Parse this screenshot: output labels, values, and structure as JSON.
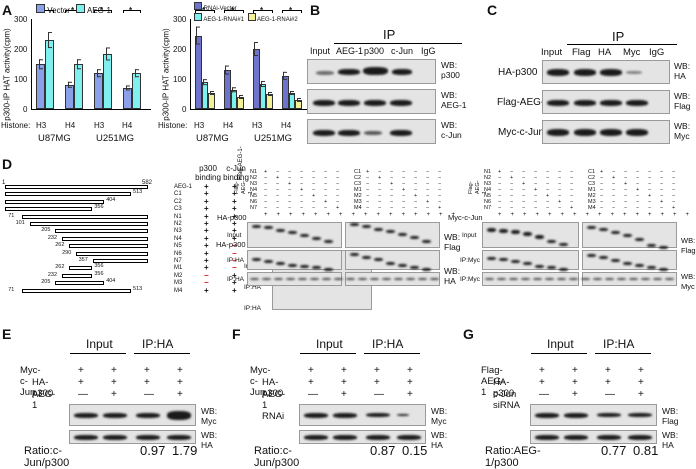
{
  "colors": {
    "vector": "#8aa1ea",
    "aeg1": "#7ff0ef",
    "rnai_vector": "#6e73cc",
    "rnai1": "#7cf2f0",
    "rnai2": "#f3f197",
    "neg": "#d01818"
  },
  "panels": {
    "A": "A",
    "B": "B",
    "C": "C",
    "D": "D",
    "E": "E",
    "F": "F",
    "G": "G"
  },
  "chart_left": {
    "ylabel": "p300-IP HAT activity(cpm)",
    "ticks": [
      "300",
      "200",
      "100",
      "0"
    ],
    "legend": [
      "Vector",
      "AEG-1"
    ],
    "histone_label": "Histone:",
    "groups": [
      "H3",
      "H4",
      "H3",
      "H4"
    ],
    "cells": [
      "U87MG",
      "U251MG"
    ],
    "sig": "*"
  },
  "chart_right": {
    "ylabel": "p300-IP HAT activity(cpm)",
    "ticks": [
      "300",
      "200",
      "100",
      "0"
    ],
    "legend": [
      "RNAi-Vector",
      "AEG-1-RNAi#1",
      "AEG-1-RNAi#2"
    ],
    "histone_label": "Histone:",
    "groups": [
      "H3",
      "H4",
      "H3",
      "H4"
    ],
    "cells": [
      "U87MG",
      "U251MG"
    ],
    "sig": "*"
  },
  "chart_data": [
    {
      "type": "bar",
      "ylim": [
        0,
        300
      ],
      "categories": [
        "U87MG H3",
        "U87MG H4",
        "U251MG H3",
        "U251MG H4"
      ],
      "series": [
        {
          "name": "Vector",
          "values": [
            150,
            80,
            120,
            70
          ]
        },
        {
          "name": "AEG-1",
          "values": [
            230,
            150,
            185,
            120
          ]
        }
      ]
    },
    {
      "type": "bar",
      "ylim": [
        0,
        300
      ],
      "categories": [
        "U87MG H3",
        "U87MG H4",
        "U251MG H3",
        "U251MG H4"
      ],
      "series": [
        {
          "name": "RNAi-Vector",
          "values": [
            245,
            130,
            200,
            110
          ]
        },
        {
          "name": "AEG-1-RNAi#1",
          "values": [
            90,
            65,
            85,
            55
          ]
        },
        {
          "name": "AEG-1-RNAi#2",
          "values": [
            55,
            40,
            50,
            30
          ]
        }
      ]
    }
  ],
  "panelB": {
    "ip": "IP",
    "lanes": [
      "Input",
      "AEG-1",
      "p300",
      "c-Jun",
      "IgG"
    ],
    "wb": [
      [
        "WB:",
        "p300"
      ],
      [
        "WB:",
        "AEG-1"
      ],
      [
        "WB:",
        "c-Jun"
      ]
    ]
  },
  "panelC": {
    "ip": "IP",
    "lanes": [
      "Input",
      "Flag",
      "HA",
      "Myc",
      "IgG"
    ],
    "rows": [
      "HA-p300",
      "Flag-AEG-1",
      "Myc-c-Jun"
    ],
    "wb": [
      [
        "WB:",
        "HA"
      ],
      [
        "WB:",
        "Flag"
      ],
      [
        "WB:",
        "Myc"
      ]
    ]
  },
  "panelD": {
    "scale_start": "1",
    "scale_end": "582",
    "constructs": [
      {
        "name": "AEG-1",
        "s": "",
        "e": "",
        "p": "+",
        "c": "+"
      },
      {
        "name": "C1",
        "s": "",
        "e": "513",
        "p": "+",
        "c": "+"
      },
      {
        "name": "C2",
        "s": "",
        "e": "404",
        "p": "+",
        "c": "+"
      },
      {
        "name": "C3",
        "s": "",
        "e": "356",
        "p": "+",
        "c": "+"
      },
      {
        "name": "N1",
        "s": "71",
        "e": "",
        "p": "+",
        "c": "+"
      },
      {
        "name": "N2",
        "s": "101",
        "e": "",
        "p": "+",
        "c": "+"
      },
      {
        "name": "N3",
        "s": "205",
        "e": "",
        "p": "+",
        "c": "+"
      },
      {
        "name": "N4",
        "s": "232",
        "e": "",
        "p": "+",
        "c": "+"
      },
      {
        "name": "N5",
        "s": "262",
        "e": "",
        "p": "+",
        "c": "−"
      },
      {
        "name": "N6",
        "s": "290",
        "e": "",
        "p": "+",
        "c": "−"
      },
      {
        "name": "N7",
        "s": "357",
        "e": "",
        "p": "+",
        "c": "−"
      },
      {
        "name": "M1",
        "s": "262",
        "e": "356",
        "p": "+",
        "c": "−"
      },
      {
        "name": "M2",
        "s": "232",
        "e": "356",
        "p": "−",
        "c": "+"
      },
      {
        "name": "M3",
        "s": "205",
        "e": "404",
        "p": "−",
        "c": "+"
      },
      {
        "name": "M4",
        "s": "71",
        "e": "513",
        "p": "+",
        "c": "+"
      }
    ],
    "col_p300": "p300 binding",
    "col_cjun": "c-Jun binding",
    "blot1": {
      "label": "Flag-AEG-1-",
      "rows": [
        "N1",
        "N2",
        "N3",
        "N4",
        "N5",
        "N6",
        "N7"
      ],
      "rows2": [
        "C1",
        "C2",
        "C3",
        "M1",
        "M2",
        "M3",
        "M4"
      ],
      "bottom": "HA-p300",
      "lanes": [
        "Input",
        "IP:HA",
        "IP:HA"
      ],
      "wb": [
        [
          "WB:",
          "Flag"
        ],
        [
          "WB:",
          "HA"
        ]
      ]
    },
    "blot2": {
      "label": "Flag-AEG-1-",
      "rows": [
        "N1",
        "N2",
        "N3",
        "N4",
        "N5",
        "N6",
        "N7"
      ],
      "rows2": [
        "C1",
        "C2",
        "C3",
        "M1",
        "M2",
        "M3",
        "M4"
      ],
      "bottom": "Myc-c-Jun",
      "lanes": [
        "Input",
        "IP:Myc",
        "IP:Myc"
      ],
      "wb": [
        [
          "WB:",
          "Flag"
        ],
        [
          "WB:",
          "Myc"
        ]
      ]
    }
  },
  "panelE": {
    "h1": "Input",
    "h2": "IP:HA",
    "rows": [
      [
        "Myc-c-Jun",
        "+",
        "+",
        "+",
        "+"
      ],
      [
        "HA-p300",
        "+",
        "+",
        "+",
        "+"
      ],
      [
        "AEG-1",
        "—",
        "+",
        "—",
        "+"
      ]
    ],
    "wb": [
      [
        "WB:",
        "Myc"
      ],
      [
        "WB:",
        "HA"
      ]
    ],
    "ratio": "Ratio:c-Jun/p300",
    "r1": "0.97",
    "r2": "1.79"
  },
  "panelF": {
    "h1": "Input",
    "h2": "IP:HA",
    "rows": [
      [
        "Myc-c-Jun",
        "+",
        "+",
        "+",
        "+"
      ],
      [
        "HA-p300",
        "+",
        "+",
        "+",
        "+"
      ],
      [
        "AEG-1 RNAi",
        "—",
        "+",
        "—",
        "+"
      ]
    ],
    "wb": [
      [
        "WB:",
        "Myc"
      ],
      [
        "WB:",
        "HA"
      ]
    ],
    "ratio": "Ratio:c-Jun/p300",
    "r1": "0.87",
    "r2": "0.15"
  },
  "panelG": {
    "h1": "Input",
    "h2": "IP:HA",
    "rows": [
      [
        "Flag-AEG-1",
        "+",
        "+",
        "+",
        "+"
      ],
      [
        "HA-p300",
        "+",
        "+",
        "+",
        "+"
      ],
      [
        "c-Jun siRNA",
        "—",
        "+",
        "—",
        "+"
      ]
    ],
    "wb": [
      [
        "WB:",
        "Flag"
      ],
      [
        "WB:",
        "HA"
      ]
    ],
    "ratio": "Ratio:AEG-1/p300",
    "r1": "0.77",
    "r2": "0.81"
  }
}
